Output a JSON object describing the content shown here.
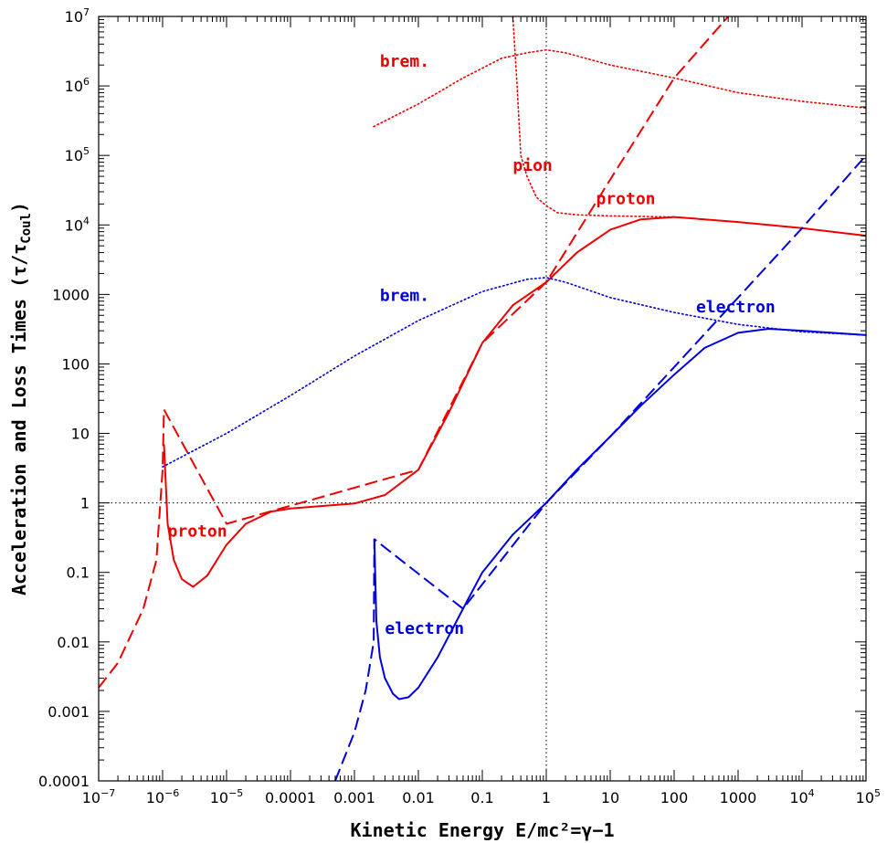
{
  "chart_data": {
    "type": "line",
    "xlabel": "Kinetic Energy  E/mc²=γ−1",
    "ylabel": "Acceleration and Loss Times (τ/τ",
    "ylabel_sub": "Coul",
    "ylabel_close": ")",
    "x_scale": "log",
    "y_scale": "log",
    "xlim": [
      1e-07,
      100000.0
    ],
    "ylim": [
      0.0001,
      10000000.0
    ],
    "grid": false,
    "x_ticks": [
      {
        "v": 1e-07,
        "label": "10",
        "exp": "−7"
      },
      {
        "v": 1e-06,
        "label": "10",
        "exp": "−6"
      },
      {
        "v": 1e-05,
        "label": "10",
        "exp": "−5"
      },
      {
        "v": 0.0001,
        "label": "0.0001",
        "exp": ""
      },
      {
        "v": 0.001,
        "label": "0.001",
        "exp": ""
      },
      {
        "v": 0.01,
        "label": "0.01",
        "exp": ""
      },
      {
        "v": 0.1,
        "label": "0.1",
        "exp": ""
      },
      {
        "v": 1,
        "label": "1",
        "exp": ""
      },
      {
        "v": 10,
        "label": "10",
        "exp": ""
      },
      {
        "v": 100,
        "label": "100",
        "exp": ""
      },
      {
        "v": 1000,
        "label": "1000",
        "exp": ""
      },
      {
        "v": 10000.0,
        "label": "10",
        "exp": "4"
      },
      {
        "v": 100000.0,
        "label": "10",
        "exp": "5"
      }
    ],
    "y_ticks": [
      {
        "v": 0.0001,
        "label": "0.0001",
        "exp": ""
      },
      {
        "v": 0.001,
        "label": "0.001",
        "exp": ""
      },
      {
        "v": 0.01,
        "label": "0.01",
        "exp": ""
      },
      {
        "v": 0.1,
        "label": "0.1",
        "exp": ""
      },
      {
        "v": 1,
        "label": "1",
        "exp": ""
      },
      {
        "v": 10,
        "label": "10",
        "exp": ""
      },
      {
        "v": 100,
        "label": "100",
        "exp": ""
      },
      {
        "v": 1000,
        "label": "1000",
        "exp": ""
      },
      {
        "v": 10000.0,
        "label": "10",
        "exp": "4"
      },
      {
        "v": 100000.0,
        "label": "10",
        "exp": "5"
      },
      {
        "v": 1000000.0,
        "label": "10",
        "exp": "6"
      },
      {
        "v": 10000000.0,
        "label": "10",
        "exp": "7"
      }
    ],
    "reference_lines": {
      "x": 1,
      "y": 1
    },
    "series": [
      {
        "id": "proton-loss",
        "color": "#ee0000",
        "style": "solid",
        "label_index": 1,
        "points": [
          [
            1.05e-06,
            7
          ],
          [
            1.2e-06,
            0.5
          ],
          [
            1.5e-06,
            0.15
          ],
          [
            2e-06,
            0.08
          ],
          [
            3e-06,
            0.062
          ],
          [
            5e-06,
            0.09
          ],
          [
            1e-05,
            0.25
          ],
          [
            2e-05,
            0.5
          ],
          [
            5e-05,
            0.75
          ],
          [
            0.0001,
            0.83
          ],
          [
            0.0003,
            0.9
          ],
          [
            0.001,
            0.98
          ],
          [
            0.003,
            1.3
          ],
          [
            0.01,
            3
          ],
          [
            0.03,
            20
          ],
          [
            0.1,
            200
          ],
          [
            0.3,
            700
          ],
          [
            1,
            1500
          ],
          [
            3,
            4000
          ],
          [
            10,
            8500
          ],
          [
            30,
            12000
          ],
          [
            100,
            13000
          ],
          [
            300,
            12000
          ],
          [
            1000,
            11000
          ],
          [
            10000.0,
            9000
          ],
          [
            100000.0,
            7000
          ]
        ]
      },
      {
        "id": "proton-accel",
        "color": "#ee0000",
        "style": "dash",
        "label_index": null,
        "points": [
          [
            1e-07,
            0.0022
          ],
          [
            2e-07,
            0.005
          ],
          [
            5e-07,
            0.03
          ],
          [
            8e-07,
            0.15
          ],
          [
            1e-06,
            3
          ],
          [
            1.05e-06,
            22
          ],
          [
            1e-05,
            0.5
          ],
          [
            0.01,
            3
          ],
          [
            0.1,
            200
          ],
          [
            1,
            1500
          ],
          [
            10,
            45000
          ],
          [
            100,
            1300000.0
          ],
          [
            700,
            10000000.0
          ]
        ]
      },
      {
        "id": "proton-pion",
        "color": "#ee0000",
        "style": "dot",
        "label_index": 2,
        "points": [
          [
            0.3,
            10000000.0
          ],
          [
            0.35,
            1000000.0
          ],
          [
            0.4,
            100000.0
          ],
          [
            0.5,
            50000.0
          ],
          [
            0.7,
            25000.0
          ],
          [
            1,
            19000.0
          ],
          [
            1.5,
            15000.0
          ],
          [
            3,
            14000.0
          ],
          [
            10,
            13500.0
          ],
          [
            100,
            13000.0
          ]
        ]
      },
      {
        "id": "proton-brem",
        "color": "#ee0000",
        "style": "dot",
        "label_index": 0,
        "points": [
          [
            0.002,
            260000.0
          ],
          [
            0.01,
            550000.0
          ],
          [
            0.05,
            1300000.0
          ],
          [
            0.2,
            2500000.0
          ],
          [
            0.5,
            3000000.0
          ],
          [
            1,
            3300000.0
          ],
          [
            2,
            3000000.0
          ],
          [
            10,
            2000000.0
          ],
          [
            100,
            1300000.0
          ],
          [
            1000,
            800000.0
          ],
          [
            10000.0,
            600000.0
          ],
          [
            100000.0,
            480000.0
          ]
        ]
      },
      {
        "id": "electron-loss",
        "color": "#0000dd",
        "style": "solid",
        "label_index": 5,
        "points": [
          [
            0.00205,
            0.3
          ],
          [
            0.0022,
            0.02
          ],
          [
            0.0025,
            0.006
          ],
          [
            0.003,
            0.003
          ],
          [
            0.004,
            0.0018
          ],
          [
            0.005,
            0.0015
          ],
          [
            0.007,
            0.0016
          ],
          [
            0.01,
            0.0022
          ],
          [
            0.02,
            0.006
          ],
          [
            0.05,
            0.03
          ],
          [
            0.1,
            0.1
          ],
          [
            0.3,
            0.35
          ],
          [
            1,
            1
          ],
          [
            3,
            3
          ],
          [
            10,
            9
          ],
          [
            30,
            25
          ],
          [
            100,
            70
          ],
          [
            300,
            170
          ],
          [
            1000,
            280
          ],
          [
            3000,
            320
          ],
          [
            10000.0,
            300
          ],
          [
            100000.0,
            260
          ]
        ]
      },
      {
        "id": "electron-accel",
        "color": "#0000dd",
        "style": "dash",
        "label_index": 4,
        "points": [
          [
            0.0005,
            0.0001
          ],
          [
            0.001,
            0.0005
          ],
          [
            0.0015,
            0.002
          ],
          [
            0.002,
            0.01
          ],
          [
            0.00205,
            0.3
          ],
          [
            0.05,
            0.03
          ],
          [
            1,
            1
          ],
          [
            10,
            9
          ],
          [
            100,
            90
          ],
          [
            1000,
            900
          ],
          [
            10000.0,
            9000
          ],
          [
            100000.0,
            100000.0
          ]
        ]
      },
      {
        "id": "electron-brem",
        "color": "#0000dd",
        "style": "dot",
        "label_index": 3,
        "points": [
          [
            1e-06,
            3.3
          ],
          [
            1e-05,
            10
          ],
          [
            0.0001,
            35
          ],
          [
            0.001,
            130
          ],
          [
            0.01,
            420
          ],
          [
            0.1,
            1100
          ],
          [
            0.5,
            1650
          ],
          [
            1,
            1750
          ],
          [
            2,
            1500
          ],
          [
            10,
            900
          ],
          [
            100,
            550
          ],
          [
            1000,
            370
          ],
          [
            10000.0,
            290
          ],
          [
            100000.0,
            260
          ]
        ]
      }
    ],
    "labels": [
      {
        "text": "brem.",
        "x": 0.0025,
        "y": 1900000.0,
        "color": "#ee0000"
      },
      {
        "text": "proton",
        "x": 6,
        "y": 20000.0,
        "color": "#ee0000"
      },
      {
        "text": "pion",
        "x": 0.3,
        "y": 60000.0,
        "color": "#ee0000"
      },
      {
        "text": "brem.",
        "x": 0.0025,
        "y": 800,
        "color": "#0000dd"
      },
      {
        "text": "electron",
        "x": 0.003,
        "y": 0.013,
        "color": "#0000dd"
      },
      {
        "text": "electron",
        "x": 220,
        "y": 550,
        "color": "#0000dd"
      },
      {
        "text": "proton",
        "x": 1.2e-06,
        "y": 0.33,
        "color": "#ee0000"
      }
    ]
  }
}
